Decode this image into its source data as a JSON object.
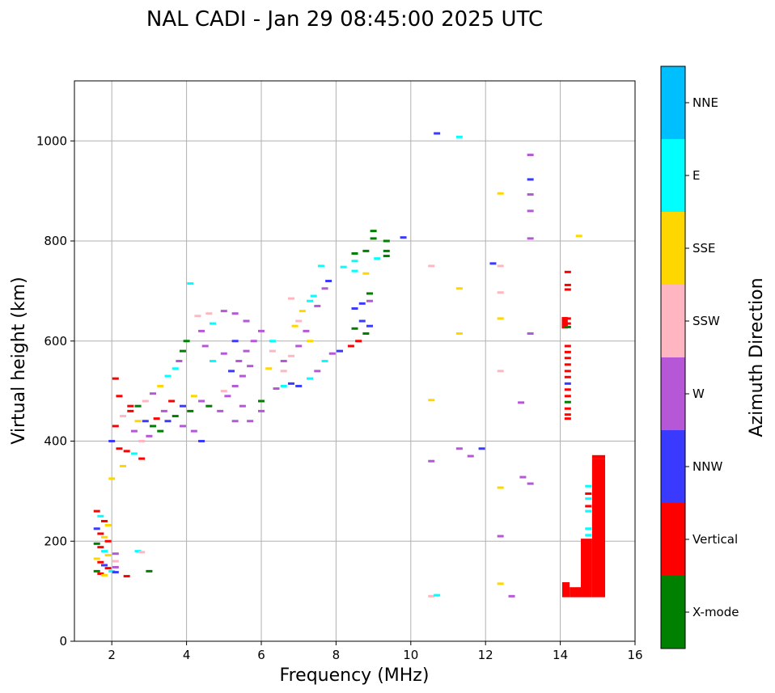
{
  "chart_data": {
    "type": "scatter",
    "title": "NAL CADI - Jan 29 08:45:00 2025 UTC",
    "xlabel": "Frequency (MHz)",
    "ylabel": "Virtual height (km)",
    "xlim": [
      1,
      16
    ],
    "ylim": [
      0,
      1120
    ],
    "xticks": [
      2,
      4,
      6,
      8,
      10,
      12,
      14,
      16
    ],
    "yticks": [
      0,
      200,
      400,
      600,
      800,
      1000
    ],
    "grid": true,
    "colorbar": {
      "label": "Azimuth Direction",
      "categories": [
        {
          "name": "X-mode",
          "color": "#008000"
        },
        {
          "name": "Vertical",
          "color": "#ff0000"
        },
        {
          "name": "NNW",
          "color": "#3a3aff"
        },
        {
          "name": "W",
          "color": "#b657d8"
        },
        {
          "name": "SSW",
          "color": "#ffb6c1"
        },
        {
          "name": "SSE",
          "color": "#ffd700"
        },
        {
          "name": "E",
          "color": "#00ffff"
        },
        {
          "name": "NNE",
          "color": "#00bfff"
        }
      ]
    },
    "points": [
      [
        10.7,
        1015,
        "NNW"
      ],
      [
        11.3,
        1008,
        "E"
      ],
      [
        13.2,
        972,
        "W"
      ],
      [
        13.2,
        923,
        "NNW"
      ],
      [
        12.4,
        895,
        "SSE"
      ],
      [
        13.2,
        893,
        "W"
      ],
      [
        13.2,
        860,
        "W"
      ],
      [
        14.5,
        810,
        "SSE"
      ],
      [
        13.2,
        805,
        "W"
      ],
      [
        9.8,
        807,
        "NNW"
      ],
      [
        12.2,
        755,
        "NNW"
      ],
      [
        12.4,
        750,
        "SSW"
      ],
      [
        10.55,
        750,
        "SSW"
      ],
      [
        11.3,
        705,
        "SSE"
      ],
      [
        12.4,
        697,
        "SSW"
      ],
      [
        12.4,
        645,
        "SSE"
      ],
      [
        13.2,
        615,
        "W"
      ],
      [
        11.3,
        615,
        "SSE"
      ],
      [
        12.4,
        540,
        "SSW"
      ],
      [
        10.55,
        482,
        "SSE"
      ],
      [
        12.95,
        477,
        "W"
      ],
      [
        11.3,
        385,
        "W"
      ],
      [
        11.6,
        370,
        "W"
      ],
      [
        11.9,
        385,
        "NNW"
      ],
      [
        10.55,
        360,
        "W"
      ],
      [
        13.0,
        328,
        "W"
      ],
      [
        13.2,
        315,
        "W"
      ],
      [
        12.4,
        307,
        "SSE"
      ],
      [
        12.4,
        210,
        "W"
      ],
      [
        12.4,
        115,
        "SSE"
      ],
      [
        12.7,
        90,
        "W"
      ],
      [
        10.55,
        90,
        "SSW"
      ],
      [
        10.7,
        92,
        "E"
      ],
      [
        14.2,
        738,
        "Vertical"
      ],
      [
        14.2,
        712,
        "Vertical"
      ],
      [
        14.2,
        703,
        "Vertical"
      ],
      [
        14.2,
        645,
        "Vertical"
      ],
      [
        14.2,
        635,
        "Vertical"
      ],
      [
        14.2,
        628,
        "X-mode"
      ],
      [
        14.2,
        590,
        "Vertical"
      ],
      [
        14.2,
        578,
        "Vertical"
      ],
      [
        14.2,
        566,
        "Vertical"
      ],
      [
        14.2,
        553,
        "Vertical"
      ],
      [
        14.2,
        540,
        "Vertical"
      ],
      [
        14.2,
        528,
        "Vertical"
      ],
      [
        14.2,
        515,
        "NNW"
      ],
      [
        14.2,
        503,
        "Vertical"
      ],
      [
        14.2,
        490,
        "Vertical"
      ],
      [
        14.2,
        478,
        "X-mode"
      ],
      [
        14.2,
        465,
        "Vertical"
      ],
      [
        14.2,
        453,
        "Vertical"
      ],
      [
        14.2,
        445,
        "Vertical"
      ],
      [
        14.75,
        310,
        "E"
      ],
      [
        14.75,
        295,
        "Vertical"
      ],
      [
        14.75,
        285,
        "E"
      ],
      [
        14.75,
        270,
        "Vertical"
      ],
      [
        14.75,
        260,
        "E"
      ],
      [
        14.75,
        225,
        "E"
      ],
      [
        14.75,
        212,
        "E"
      ],
      [
        8.5,
        665,
        "NNW"
      ],
      [
        8.7,
        640,
        "NNW"
      ],
      [
        8.9,
        630,
        "NNW"
      ],
      [
        8.8,
        615,
        "X-mode"
      ],
      [
        8.6,
        600,
        "Vertical"
      ],
      [
        8.4,
        590,
        "Vertical"
      ],
      [
        8.5,
        625,
        "X-mode"
      ],
      [
        8.7,
        675,
        "NNW"
      ],
      [
        8.9,
        680,
        "W"
      ],
      [
        8.9,
        695,
        "X-mode"
      ],
      [
        8.8,
        735,
        "SSE"
      ],
      [
        8.5,
        740,
        "E"
      ],
      [
        8.5,
        760,
        "E"
      ],
      [
        8.5,
        775,
        "X-mode"
      ],
      [
        8.8,
        780,
        "X-mode"
      ],
      [
        9.0,
        805,
        "X-mode"
      ],
      [
        9.0,
        820,
        "X-mode"
      ],
      [
        9.35,
        800,
        "X-mode"
      ],
      [
        9.35,
        780,
        "X-mode"
      ],
      [
        9.35,
        770,
        "X-mode"
      ],
      [
        9.1,
        765,
        "E"
      ],
      [
        8.2,
        748,
        "E"
      ],
      [
        7.8,
        720,
        "NNW"
      ],
      [
        7.6,
        750,
        "E"
      ],
      [
        8.1,
        580,
        "NNW"
      ],
      [
        7.9,
        575,
        "W"
      ],
      [
        7.7,
        560,
        "E"
      ],
      [
        7.5,
        540,
        "W"
      ],
      [
        7.3,
        525,
        "E"
      ],
      [
        7.0,
        510,
        "NNW"
      ],
      [
        6.8,
        515,
        "NNW"
      ],
      [
        6.6,
        510,
        "E"
      ],
      [
        6.4,
        505,
        "W"
      ],
      [
        6.6,
        540,
        "SSW"
      ],
      [
        6.8,
        570,
        "SSW"
      ],
      [
        7.0,
        590,
        "W"
      ],
      [
        7.2,
        620,
        "W"
      ],
      [
        7.0,
        640,
        "SSW"
      ],
      [
        7.1,
        660,
        "SSE"
      ],
      [
        7.3,
        680,
        "E"
      ],
      [
        7.4,
        690,
        "E"
      ],
      [
        6.8,
        685,
        "SSW"
      ],
      [
        4.1,
        715,
        "E"
      ],
      [
        4.3,
        650,
        "SSW"
      ],
      [
        4.6,
        655,
        "SSW"
      ],
      [
        5.0,
        660,
        "W"
      ],
      [
        5.3,
        655,
        "W"
      ],
      [
        5.6,
        640,
        "W"
      ],
      [
        4.7,
        635,
        "E"
      ],
      [
        4.4,
        620,
        "W"
      ],
      [
        4.0,
        600,
        "X-mode"
      ],
      [
        3.9,
        580,
        "X-mode"
      ],
      [
        3.8,
        560,
        "W"
      ],
      [
        3.7,
        545,
        "E"
      ],
      [
        3.5,
        530,
        "E"
      ],
      [
        3.3,
        510,
        "SSE"
      ],
      [
        3.1,
        495,
        "W"
      ],
      [
        2.9,
        480,
        "SSW"
      ],
      [
        2.7,
        470,
        "X-mode"
      ],
      [
        2.5,
        460,
        "Vertical"
      ],
      [
        2.3,
        450,
        "SSW"
      ],
      [
        2.1,
        430,
        "Vertical"
      ],
      [
        2.0,
        400,
        "NNW"
      ],
      [
        2.2,
        385,
        "Vertical"
      ],
      [
        2.4,
        380,
        "Vertical"
      ],
      [
        2.6,
        375,
        "E"
      ],
      [
        2.8,
        365,
        "Vertical"
      ],
      [
        2.3,
        350,
        "SSE"
      ],
      [
        2.0,
        325,
        "SSE"
      ],
      [
        2.1,
        525,
        "Vertical"
      ],
      [
        2.2,
        490,
        "Vertical"
      ],
      [
        2.5,
        470,
        "Vertical"
      ],
      [
        2.9,
        440,
        "NNW"
      ],
      [
        3.1,
        430,
        "X-mode"
      ],
      [
        3.3,
        420,
        "X-mode"
      ],
      [
        3.5,
        440,
        "NNW"
      ],
      [
        3.7,
        450,
        "X-mode"
      ],
      [
        3.9,
        470,
        "NNW"
      ],
      [
        4.2,
        490,
        "SSE"
      ],
      [
        4.4,
        480,
        "W"
      ],
      [
        4.6,
        470,
        "X-mode"
      ],
      [
        4.1,
        460,
        "X-mode"
      ],
      [
        3.0,
        410,
        "W"
      ],
      [
        2.8,
        400,
        "SSW"
      ],
      [
        2.6,
        420,
        "W"
      ],
      [
        3.4,
        460,
        "W"
      ],
      [
        3.6,
        480,
        "Vertical"
      ],
      [
        3.2,
        445,
        "Vertical"
      ],
      [
        2.7,
        440,
        "SSE"
      ],
      [
        3.9,
        430,
        "W"
      ],
      [
        4.2,
        420,
        "W"
      ],
      [
        4.4,
        400,
        "NNW"
      ],
      [
        4.9,
        460,
        "W"
      ],
      [
        5.1,
        490,
        "W"
      ],
      [
        5.3,
        510,
        "W"
      ],
      [
        5.5,
        530,
        "W"
      ],
      [
        5.7,
        550,
        "W"
      ],
      [
        5.2,
        540,
        "NNW"
      ],
      [
        5.4,
        560,
        "W"
      ],
      [
        5.6,
        580,
        "W"
      ],
      [
        5.8,
        600,
        "W"
      ],
      [
        6.0,
        620,
        "W"
      ],
      [
        5.0,
        575,
        "W"
      ],
      [
        5.3,
        600,
        "NNW"
      ],
      [
        5.5,
        470,
        "W"
      ],
      [
        5.3,
        440,
        "W"
      ],
      [
        5.0,
        500,
        "SSW"
      ],
      [
        4.7,
        560,
        "E"
      ],
      [
        4.5,
        590,
        "W"
      ],
      [
        6.0,
        460,
        "W"
      ],
      [
        6.3,
        600,
        "E"
      ],
      [
        6.3,
        580,
        "SSW"
      ],
      [
        6.2,
        545,
        "SSE"
      ],
      [
        6.6,
        560,
        "W"
      ],
      [
        7.3,
        600,
        "SSE"
      ],
      [
        6.9,
        630,
        "SSE"
      ],
      [
        7.5,
        670,
        "W"
      ],
      [
        7.7,
        705,
        "W"
      ],
      [
        5.7,
        440,
        "W"
      ],
      [
        6.0,
        480,
        "X-mode"
      ],
      [
        3.0,
        140,
        "X-mode"
      ],
      [
        2.7,
        180,
        "E"
      ],
      [
        2.8,
        178,
        "SSW"
      ],
      [
        1.6,
        260,
        "Vertical"
      ],
      [
        1.7,
        250,
        "E"
      ],
      [
        1.8,
        240,
        "Vertical"
      ],
      [
        1.9,
        232,
        "SSE"
      ],
      [
        1.6,
        225,
        "NNW"
      ],
      [
        1.7,
        215,
        "Vertical"
      ],
      [
        1.8,
        208,
        "SSE"
      ],
      [
        1.9,
        200,
        "Vertical"
      ],
      [
        1.6,
        195,
        "X-mode"
      ],
      [
        1.7,
        188,
        "Vertical"
      ],
      [
        1.8,
        180,
        "E"
      ],
      [
        1.9,
        172,
        "SSE"
      ],
      [
        1.6,
        165,
        "SSE"
      ],
      [
        1.7,
        158,
        "Vertical"
      ],
      [
        1.8,
        152,
        "NNW"
      ],
      [
        1.9,
        146,
        "Vertical"
      ],
      [
        1.6,
        140,
        "X-mode"
      ],
      [
        1.7,
        135,
        "Vertical"
      ],
      [
        1.8,
        132,
        "SSE"
      ],
      [
        2.0,
        140,
        "E"
      ],
      [
        2.1,
        148,
        "W"
      ],
      [
        2.1,
        160,
        "SSW"
      ],
      [
        2.1,
        175,
        "W"
      ],
      [
        2.4,
        130,
        "Vertical"
      ],
      [
        2.1,
        138,
        "NNW"
      ]
    ],
    "blocks": [
      [
        14.04,
        14.2,
        625,
        648,
        "Vertical"
      ],
      [
        14.05,
        14.25,
        88,
        118,
        "Vertical"
      ],
      [
        14.25,
        14.55,
        88,
        108,
        "Vertical"
      ],
      [
        14.55,
        14.85,
        88,
        205,
        "Vertical"
      ],
      [
        14.85,
        15.2,
        88,
        365,
        "Vertical"
      ],
      [
        14.85,
        15.2,
        365,
        372,
        "Vertical"
      ]
    ]
  }
}
